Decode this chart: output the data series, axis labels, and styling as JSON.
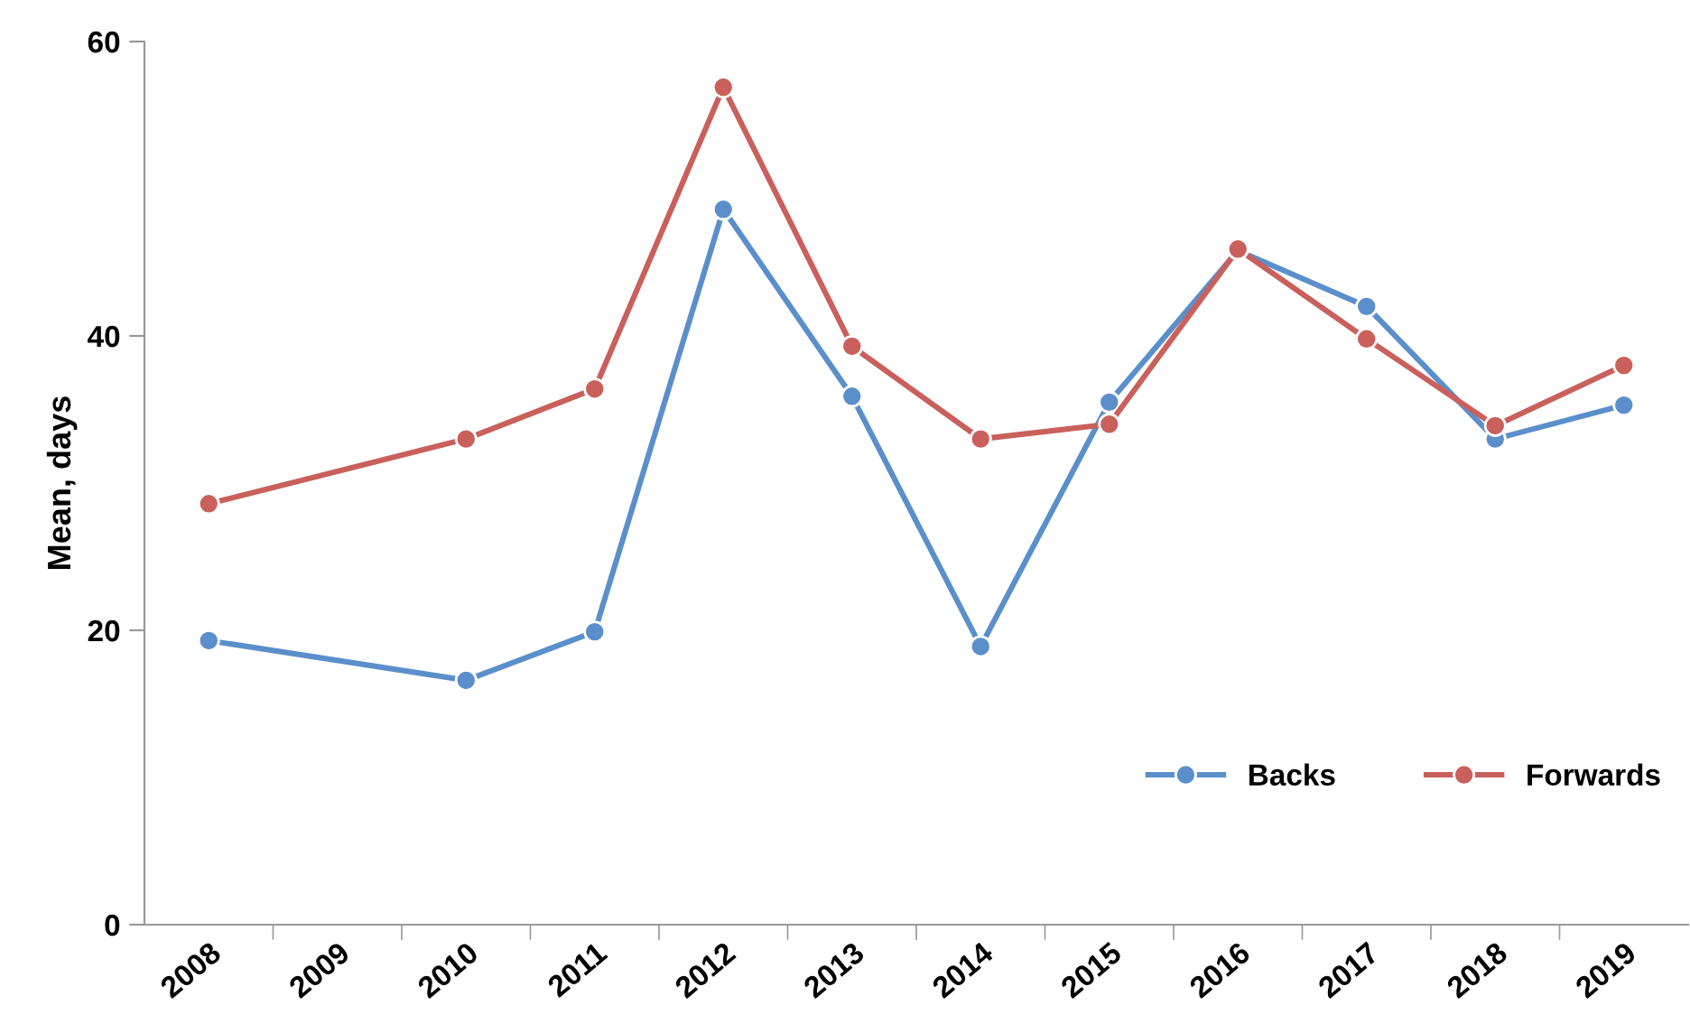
{
  "chart_data": {
    "type": "line",
    "ylabel": "Mean, days",
    "categories": [
      "2008",
      "2009",
      "2010",
      "2011",
      "2012",
      "2013",
      "2014",
      "2015",
      "2016",
      "2017",
      "2018",
      "2019"
    ],
    "series": [
      {
        "name": "Backs",
        "color": "#5b8fcb",
        "values": [
          19.3,
          null,
          16.6,
          19.9,
          48.6,
          35.9,
          18.9,
          35.5,
          45.8,
          42.0,
          33.0,
          35.3
        ]
      },
      {
        "name": "Forwards",
        "color": "#c9605c",
        "values": [
          28.6,
          null,
          33.0,
          36.4,
          56.9,
          39.3,
          33.0,
          34.0,
          45.9,
          39.8,
          33.9,
          38.0
        ]
      }
    ],
    "ylim": [
      0,
      60
    ],
    "yticks": [
      0,
      20,
      40,
      60
    ],
    "grid": false,
    "legend": "lower right",
    "marker": "circle",
    "line_style": "solid"
  }
}
